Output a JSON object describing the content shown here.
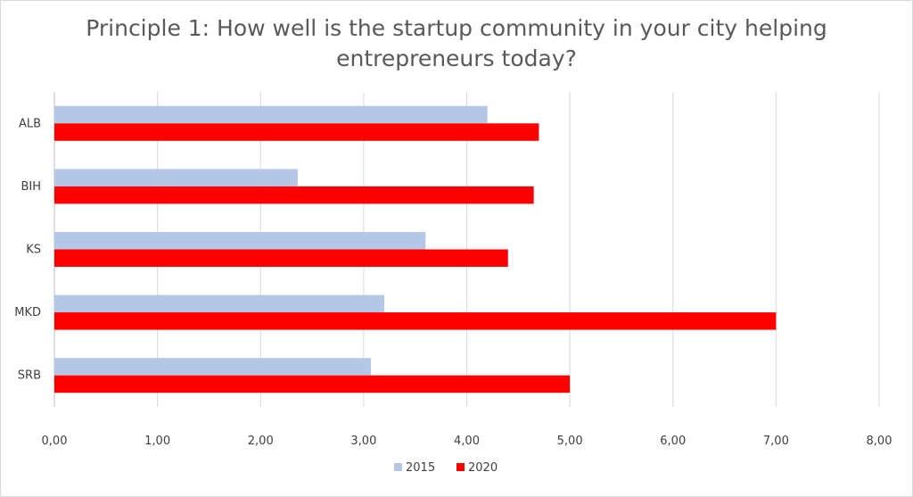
{
  "chart_data": {
    "type": "bar",
    "orientation": "horizontal",
    "title_lines": [
      "Principle 1: How well is the startup community in your city helping",
      "entrepreneurs today?"
    ],
    "categories": [
      "ALB",
      "BIH",
      "KS",
      "MKD",
      "SRB"
    ],
    "series": [
      {
        "name": "2015",
        "color": "#b4c7e7",
        "values": [
          4.2,
          2.36,
          3.6,
          3.2,
          3.07
        ]
      },
      {
        "name": "2020",
        "color": "#ff0000",
        "values": [
          4.7,
          4.65,
          4.4,
          7.0,
          5.0
        ]
      }
    ],
    "xlim": [
      0,
      8
    ],
    "x_ticks": [
      "0,00",
      "1,00",
      "2,00",
      "3,00",
      "4,00",
      "5,00",
      "6,00",
      "7,00",
      "8,00"
    ],
    "grid": "vertical",
    "legend_position": "bottom"
  }
}
